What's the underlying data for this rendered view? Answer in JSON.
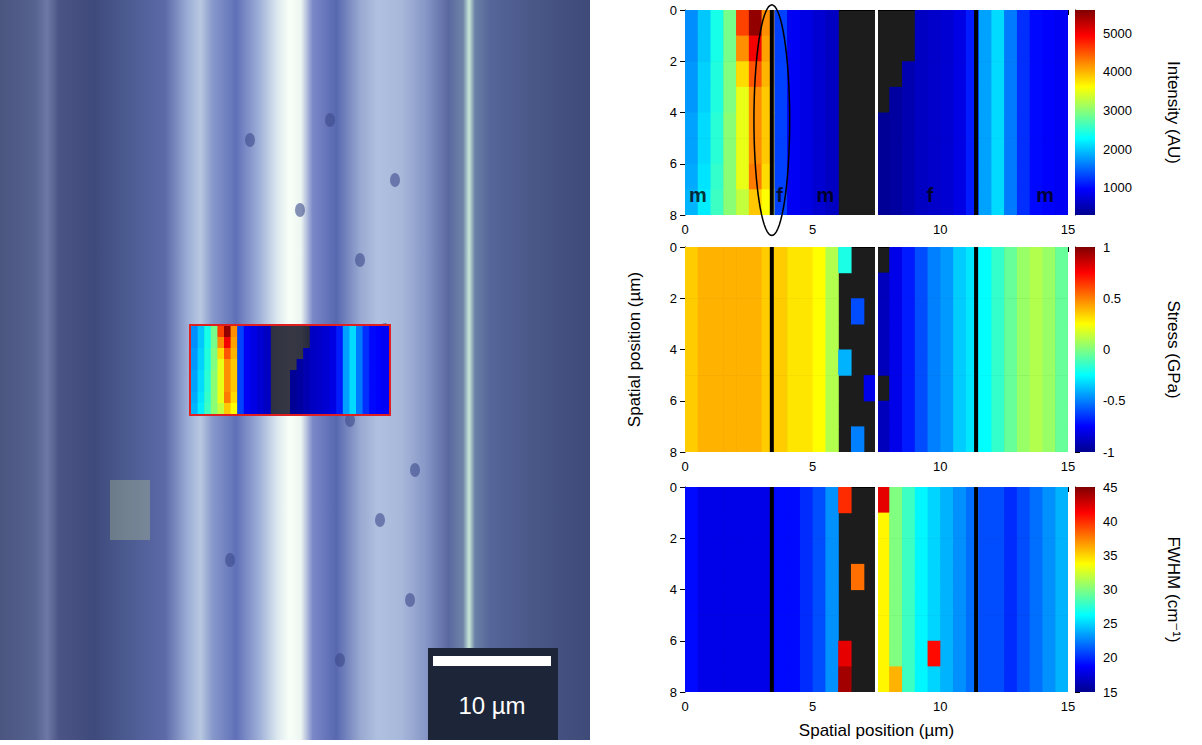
{
  "image": {
    "scale_bar_label": "10 µm"
  },
  "vertical_lines": [
    {
      "x": 3.4,
      "color": "black"
    },
    {
      "x": 11.4,
      "color": "black"
    },
    {
      "x": 7.5,
      "color": "white"
    }
  ],
  "chart_data": [
    {
      "type": "heatmap",
      "x": [
        0.25,
        0.75,
        1.25,
        1.75,
        2.25,
        2.75,
        3.25,
        3.75,
        4.25,
        4.75,
        5.25,
        5.75,
        6.25,
        6.75,
        7.25,
        7.75,
        8.25,
        8.75,
        9.25,
        9.75,
        10.25,
        10.75,
        11.25,
        11.75,
        12.25,
        12.75,
        13.25,
        13.75,
        14.25,
        14.75
      ],
      "y": [
        0.5,
        1.5,
        2.5,
        3.5,
        4.5,
        5.5,
        6.5,
        7.5
      ],
      "xlim": [
        0,
        15
      ],
      "xticks": [
        0,
        5,
        10,
        15
      ],
      "ylim": [
        0,
        8
      ],
      "yticks": [
        0,
        2,
        4,
        6,
        8
      ],
      "cells": [
        [
          1700,
          2000,
          2400,
          2900,
          4600,
          5500,
          4200,
          1300,
          900,
          800,
          700,
          600,
          null,
          null,
          null,
          null,
          null,
          null,
          600,
          650,
          700,
          800,
          1100,
          1800,
          2100,
          1600,
          1200,
          1000,
          950,
          900
        ],
        [
          1700,
          2000,
          2400,
          2900,
          4200,
          5000,
          4100,
          1300,
          900,
          800,
          700,
          600,
          null,
          null,
          null,
          null,
          null,
          null,
          600,
          650,
          700,
          800,
          1100,
          1800,
          2100,
          1600,
          1200,
          1000,
          950,
          900
        ],
        [
          1750,
          2050,
          2450,
          2950,
          3800,
          4500,
          4000,
          1300,
          900,
          800,
          700,
          600,
          null,
          null,
          null,
          null,
          null,
          500,
          600,
          650,
          700,
          800,
          1100,
          1800,
          2100,
          1600,
          1200,
          1000,
          950,
          900
        ],
        [
          1750,
          2050,
          2450,
          2950,
          3500,
          4200,
          3900,
          1300,
          900,
          800,
          700,
          600,
          null,
          null,
          null,
          null,
          400,
          500,
          600,
          650,
          700,
          800,
          1100,
          1800,
          2100,
          1600,
          1200,
          1000,
          950,
          900
        ],
        [
          1800,
          2100,
          2500,
          3000,
          3500,
          4200,
          3900,
          1300,
          900,
          800,
          700,
          600,
          null,
          null,
          null,
          350,
          400,
          500,
          600,
          650,
          700,
          800,
          1100,
          1800,
          2100,
          1600,
          1200,
          1000,
          950,
          900
        ],
        [
          1800,
          2100,
          2500,
          3000,
          3500,
          4200,
          3900,
          1300,
          900,
          800,
          700,
          600,
          null,
          null,
          null,
          350,
          400,
          500,
          600,
          650,
          700,
          800,
          1100,
          1800,
          2100,
          1600,
          1200,
          1000,
          950,
          900
        ],
        [
          1850,
          2150,
          2550,
          3000,
          3500,
          4300,
          3800,
          1300,
          900,
          800,
          700,
          600,
          null,
          null,
          null,
          350,
          400,
          500,
          600,
          650,
          700,
          800,
          1100,
          1800,
          2100,
          1600,
          1200,
          1000,
          950,
          900
        ],
        [
          1900,
          2200,
          2600,
          3000,
          3300,
          3900,
          3600,
          1300,
          900,
          800,
          700,
          600,
          null,
          null,
          null,
          350,
          400,
          500,
          600,
          650,
          700,
          800,
          1100,
          1800,
          2100,
          1600,
          1200,
          1000,
          950,
          900
        ]
      ],
      "colorbar": {
        "label": "Intensity (AU)",
        "lim": [
          300,
          5600
        ],
        "ticks": [
          1000,
          2000,
          3000,
          4000,
          5000
        ]
      },
      "labels": [
        {
          "text": "m",
          "x": 0.5,
          "y": 7.2
        },
        {
          "text": "f",
          "x": 3.7,
          "y": 7.2
        },
        {
          "text": "m",
          "x": 5.5,
          "y": 7.2
        },
        {
          "text": "f",
          "x": 9.6,
          "y": 7.2
        },
        {
          "text": "m",
          "x": 14.1,
          "y": 7.2
        }
      ],
      "ellipse": {
        "x": 3.4,
        "y": 4.3,
        "rx": 0.7,
        "ry": 4.5
      }
    },
    {
      "type": "heatmap",
      "x": [
        0.25,
        0.75,
        1.25,
        1.75,
        2.25,
        2.75,
        3.25,
        3.75,
        4.25,
        4.75,
        5.25,
        5.75,
        6.25,
        6.75,
        7.25,
        7.75,
        8.25,
        8.75,
        9.25,
        9.75,
        10.25,
        10.75,
        11.25,
        11.75,
        12.25,
        12.75,
        13.25,
        13.75,
        14.25,
        14.75
      ],
      "y": [
        0.5,
        1.5,
        2.5,
        3.5,
        4.5,
        5.5,
        6.5,
        7.5
      ],
      "xlim": [
        0,
        15
      ],
      "xticks": [
        0,
        5,
        10,
        15
      ],
      "ylim": [
        0,
        8
      ],
      "yticks": [
        0,
        2,
        4,
        6,
        8
      ],
      "ylabel": "Spatial position (µm)",
      "cells": [
        [
          0.35,
          0.4,
          0.4,
          0.4,
          0.4,
          0.4,
          0.35,
          0.35,
          0.3,
          0.3,
          0.25,
          0.1,
          -0.2,
          null,
          null,
          null,
          -0.8,
          -0.7,
          -0.6,
          -0.5,
          -0.45,
          -0.35,
          -0.3,
          -0.25,
          -0.15,
          -0.05,
          0.05,
          0.1,
          0.05,
          -0.05
        ],
        [
          0.35,
          0.4,
          0.4,
          0.4,
          0.4,
          0.4,
          0.35,
          0.35,
          0.3,
          0.3,
          0.25,
          0.1,
          null,
          null,
          null,
          -0.9,
          -0.8,
          -0.7,
          -0.6,
          -0.5,
          -0.45,
          -0.35,
          -0.3,
          -0.25,
          -0.15,
          -0.05,
          0.05,
          0.1,
          0.05,
          -0.05
        ],
        [
          0.35,
          0.4,
          0.4,
          0.4,
          0.4,
          0.4,
          0.35,
          0.35,
          0.3,
          0.3,
          0.25,
          0.1,
          null,
          -0.6,
          null,
          -0.9,
          -0.8,
          -0.7,
          -0.6,
          -0.5,
          -0.45,
          -0.35,
          -0.3,
          -0.25,
          -0.15,
          -0.05,
          0.05,
          0.1,
          0.05,
          -0.05
        ],
        [
          0.35,
          0.4,
          0.4,
          0.4,
          0.4,
          0.4,
          0.35,
          0.35,
          0.3,
          0.3,
          0.25,
          0.1,
          null,
          null,
          null,
          -0.9,
          -0.8,
          -0.7,
          -0.6,
          -0.5,
          -0.45,
          -0.35,
          -0.3,
          -0.25,
          -0.15,
          -0.05,
          0.05,
          0.1,
          0.05,
          -0.05
        ],
        [
          0.35,
          0.4,
          0.4,
          0.4,
          0.4,
          0.4,
          0.35,
          0.35,
          0.3,
          0.3,
          0.25,
          0.1,
          -0.4,
          null,
          null,
          -0.9,
          -0.8,
          -0.7,
          -0.6,
          -0.5,
          -0.45,
          -0.35,
          -0.3,
          -0.25,
          -0.15,
          -0.05,
          0.05,
          0.1,
          0.05,
          -0.05
        ],
        [
          0.35,
          0.4,
          0.4,
          0.4,
          0.4,
          0.4,
          0.35,
          0.35,
          0.3,
          0.3,
          0.25,
          0.1,
          null,
          null,
          -0.8,
          null,
          -0.8,
          -0.7,
          -0.6,
          -0.5,
          -0.45,
          -0.35,
          -0.3,
          -0.25,
          -0.15,
          -0.05,
          0.05,
          0.1,
          0.05,
          -0.05
        ],
        [
          0.35,
          0.4,
          0.4,
          0.4,
          0.4,
          0.4,
          0.35,
          0.35,
          0.3,
          0.3,
          0.25,
          0.1,
          null,
          null,
          null,
          -0.9,
          -0.8,
          -0.7,
          -0.6,
          -0.5,
          -0.45,
          -0.35,
          -0.3,
          -0.25,
          -0.15,
          -0.05,
          0.05,
          0.1,
          0.05,
          -0.05
        ],
        [
          0.35,
          0.4,
          0.4,
          0.4,
          0.4,
          0.4,
          0.35,
          0.35,
          0.3,
          0.3,
          0.25,
          0.1,
          null,
          -0.5,
          null,
          -0.9,
          -0.8,
          -0.7,
          -0.6,
          -0.5,
          -0.45,
          -0.35,
          -0.3,
          -0.25,
          -0.15,
          -0.05,
          0.05,
          0.1,
          0.05,
          -0.05
        ]
      ],
      "colorbar": {
        "label": "Stress (GPa)",
        "lim": [
          -1,
          1
        ],
        "ticks": [
          -1,
          -0.5,
          0,
          0.5,
          1
        ]
      }
    },
    {
      "type": "heatmap",
      "x": [
        0.25,
        0.75,
        1.25,
        1.75,
        2.25,
        2.75,
        3.25,
        3.75,
        4.25,
        4.75,
        5.25,
        5.75,
        6.25,
        6.75,
        7.25,
        7.75,
        8.25,
        8.75,
        9.25,
        9.75,
        10.25,
        10.75,
        11.25,
        11.75,
        12.25,
        12.75,
        13.25,
        13.75,
        14.25,
        14.75
      ],
      "y": [
        0.5,
        1.5,
        2.5,
        3.5,
        4.5,
        5.5,
        6.5,
        7.5
      ],
      "xlim": [
        0,
        15
      ],
      "xticks": [
        0,
        5,
        10,
        15
      ],
      "ylim": [
        0,
        8
      ],
      "yticks": [
        0,
        2,
        4,
        6,
        8
      ],
      "xlabel": "Spatial position (µm)",
      "cells": [
        [
          19,
          18,
          18,
          18,
          18,
          18,
          18,
          19,
          19,
          20,
          21,
          23,
          40,
          null,
          null,
          42,
          30,
          28,
          26,
          25,
          24,
          23,
          22,
          21,
          21,
          20,
          21,
          22,
          23,
          24
        ],
        [
          19,
          18,
          18,
          18,
          18,
          18,
          18,
          19,
          19,
          20,
          21,
          23,
          null,
          null,
          null,
          34,
          30,
          28,
          26,
          25,
          24,
          23,
          22,
          21,
          21,
          20,
          21,
          22,
          23,
          24
        ],
        [
          19,
          18,
          18,
          18,
          18,
          18,
          18,
          19,
          19,
          20,
          21,
          23,
          null,
          null,
          null,
          34,
          30,
          28,
          26,
          25,
          24,
          23,
          22,
          21,
          21,
          20,
          21,
          22,
          23,
          24
        ],
        [
          19,
          18,
          18,
          18,
          18,
          18,
          18,
          19,
          19,
          20,
          21,
          23,
          null,
          38,
          null,
          34,
          30,
          28,
          26,
          25,
          24,
          23,
          22,
          21,
          21,
          20,
          21,
          22,
          23,
          24
        ],
        [
          19,
          18,
          18,
          18,
          18,
          18,
          18,
          19,
          19,
          20,
          21,
          23,
          null,
          null,
          null,
          34,
          30,
          28,
          26,
          25,
          24,
          23,
          22,
          21,
          21,
          20,
          21,
          22,
          23,
          24
        ],
        [
          19,
          18,
          18,
          18,
          18,
          18,
          18,
          19,
          19,
          20,
          21,
          23,
          null,
          null,
          null,
          34,
          30,
          28,
          26,
          25,
          24,
          23,
          22,
          21,
          21,
          20,
          21,
          22,
          23,
          24
        ],
        [
          19,
          18,
          18,
          18,
          18,
          18,
          18,
          19,
          19,
          20,
          21,
          23,
          42,
          null,
          null,
          34,
          30,
          28,
          26,
          41,
          24,
          23,
          22,
          21,
          21,
          20,
          21,
          22,
          23,
          24
        ],
        [
          19,
          18,
          18,
          18,
          18,
          18,
          18,
          19,
          19,
          20,
          21,
          23,
          44,
          null,
          null,
          34,
          36,
          28,
          26,
          25,
          24,
          23,
          22,
          21,
          21,
          20,
          21,
          22,
          23,
          24
        ]
      ],
      "colorbar": {
        "label": "FWHM (cm⁻¹)",
        "lim": [
          15,
          45
        ],
        "ticks": [
          15,
          20,
          25,
          30,
          35,
          40,
          45
        ]
      }
    }
  ]
}
